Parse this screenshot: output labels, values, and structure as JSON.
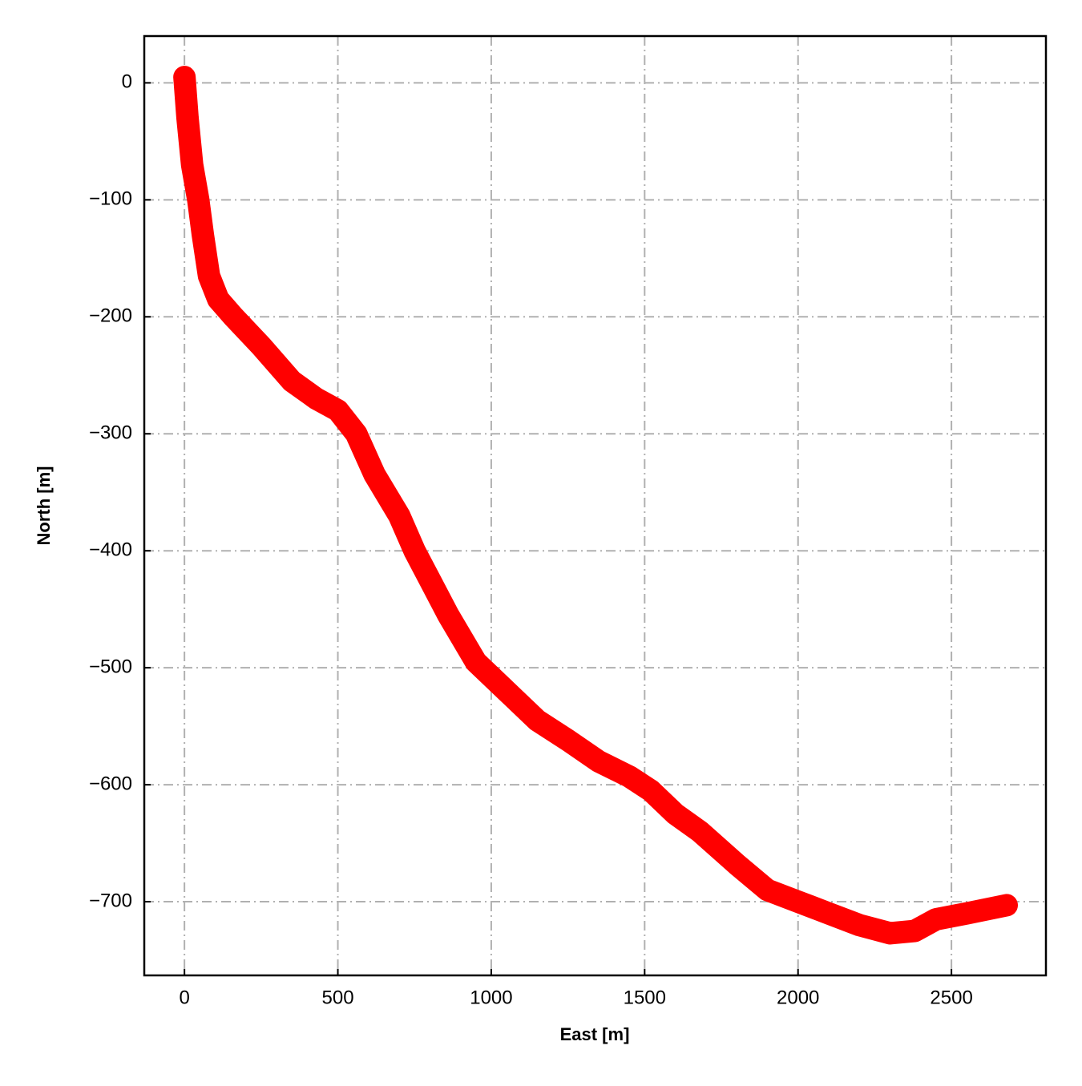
{
  "chart_data": {
    "type": "line",
    "xlabel": "East [m]",
    "ylabel": "North [m]",
    "x": [
      0,
      10,
      25,
      45,
      60,
      80,
      110,
      160,
      250,
      350,
      430,
      500,
      560,
      620,
      700,
      750,
      800,
      860,
      950,
      1050,
      1150,
      1250,
      1350,
      1450,
      1520,
      1600,
      1680,
      1800,
      1900,
      2000,
      2100,
      2200,
      2300,
      2380,
      2450,
      2550,
      2680
    ],
    "series": [
      {
        "color": "#ff0000",
        "values": [
          5,
          -30,
          -70,
          -100,
          -130,
          -165,
          -185,
          -200,
          -225,
          -255,
          -270,
          -280,
          -300,
          -335,
          -370,
          -400,
          -425,
          -455,
          -495,
          -520,
          -545,
          -562,
          -580,
          -593,
          -605,
          -625,
          -640,
          -668,
          -690,
          -700,
          -710,
          -720,
          -727,
          -725,
          -715,
          -710,
          -703
        ]
      }
    ],
    "xlim": [
      -131,
      2808
    ],
    "ylim": [
      -763,
      40
    ],
    "xticks": [
      0,
      500,
      1000,
      1500,
      2000,
      2500
    ],
    "yticks": [
      0,
      {
        "value": -100,
        "label": "−100"
      },
      {
        "value": -200,
        "label": "−200"
      },
      {
        "value": -300,
        "label": "−300"
      },
      {
        "value": -400,
        "label": "−400"
      },
      {
        "value": -500,
        "label": "−500"
      },
      {
        "value": -600,
        "label": "−600"
      },
      {
        "value": -700,
        "label": "−700"
      }
    ],
    "grid": true
  }
}
